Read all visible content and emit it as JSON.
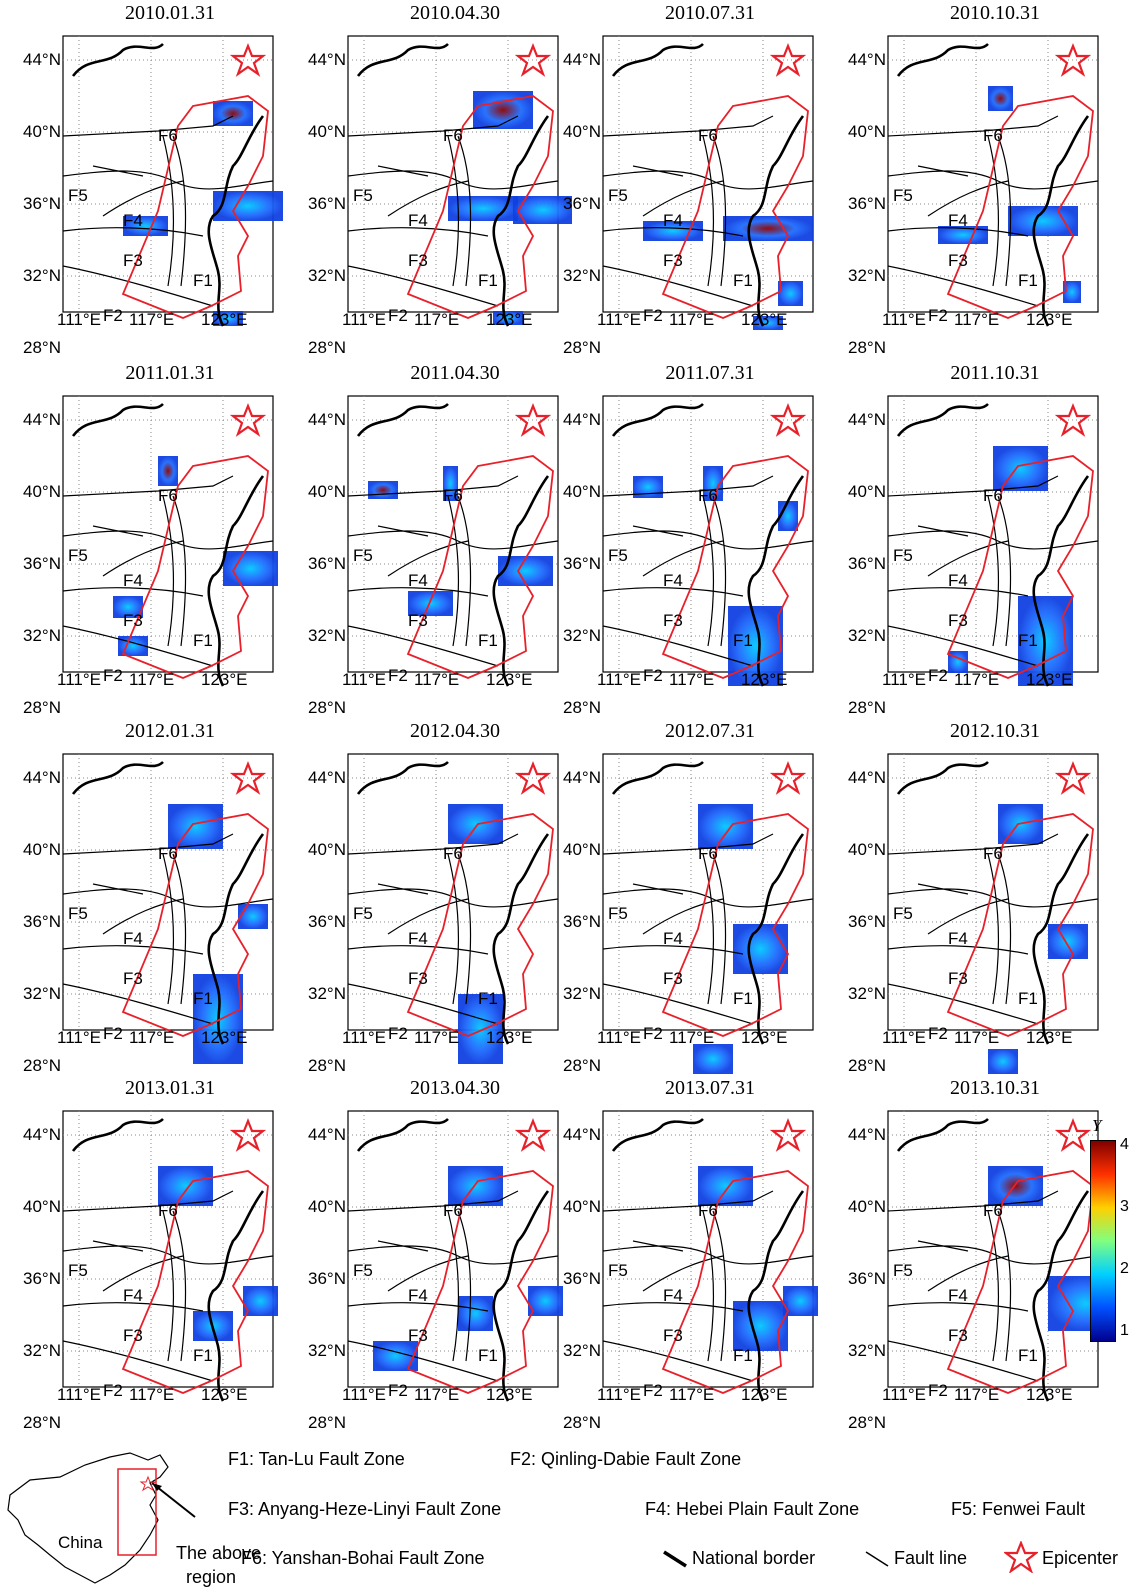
{
  "panels": [
    {
      "date": "2010.01.31"
    },
    {
      "date": "2010.04.30"
    },
    {
      "date": "2010.07.31"
    },
    {
      "date": "2010.10.31"
    },
    {
      "date": "2011.01.31"
    },
    {
      "date": "2011.04.30"
    },
    {
      "date": "2011.07.31"
    },
    {
      "date": "2011.10.31"
    },
    {
      "date": "2012.01.31"
    },
    {
      "date": "2012.04.30"
    },
    {
      "date": "2012.07.31"
    },
    {
      "date": "2012.10.31"
    },
    {
      "date": "2013.01.31"
    },
    {
      "date": "2013.04.30"
    },
    {
      "date": "2013.07.31"
    },
    {
      "date": "2013.10.31"
    }
  ],
  "lat_labels": [
    "44°N",
    "40°N",
    "36°N",
    "32°N",
    "28°N"
  ],
  "lon_labels": [
    "111°E",
    "117°E",
    "123°E"
  ],
  "fault_labels": [
    "F1",
    "F2",
    "F3",
    "F4",
    "F5",
    "F6"
  ],
  "colorbar": {
    "symbol": "Y",
    "ticks": [
      "4",
      "3",
      "2",
      "1"
    ],
    "colors": [
      "#00008f",
      "#0050ff",
      "#00d0ff",
      "#80ff80",
      "#ffd000",
      "#ff3000",
      "#800000"
    ]
  },
  "legend": {
    "f1": "F1: Tan-Lu Fault Zone",
    "f2": "F2: Qinling-Dabie Fault Zone",
    "f3": "F3: Anyang-Heze-Linyi Fault  Zone",
    "f4": "F4:  Hebei Plain Fault  Zone",
    "f5": "F5: Fenwei Fault",
    "f6": "F6: Yanshan-Bohai Fault Zone",
    "national_border": "National border",
    "fault_line": "Fault line",
    "epicenter": "Epicenter",
    "china": "China",
    "above_region_1": "The above",
    "above_region_2": "region"
  },
  "colors": {
    "region": "#e8202a",
    "star": "#e8202a",
    "border": "#000000"
  }
}
